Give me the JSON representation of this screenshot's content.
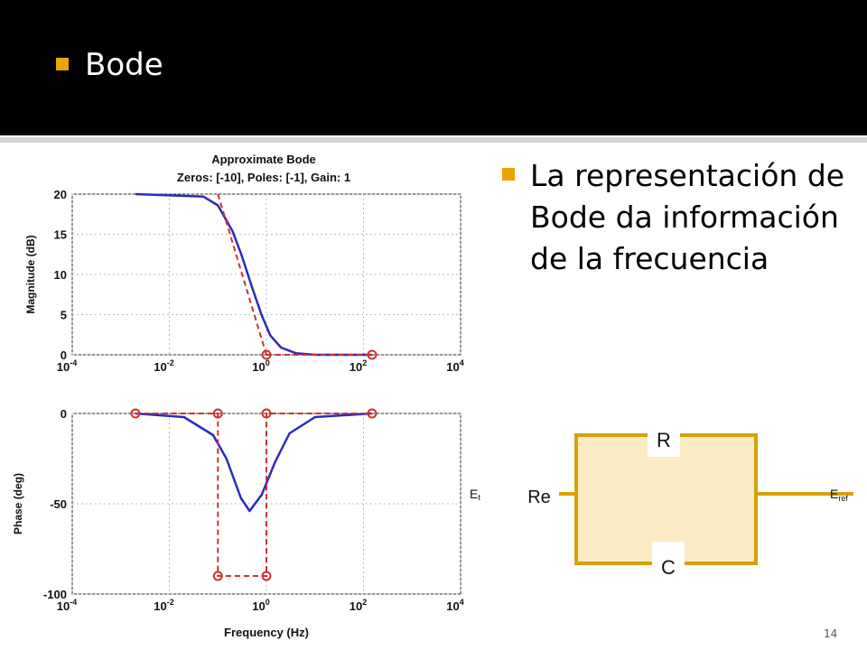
{
  "slide": {
    "title": "Bode",
    "bullet": "La representación de Bode da información de la frecuencia",
    "page_number": "14",
    "accent_color": "#e9a400"
  },
  "plot": {
    "title_line1": "Approximate Bode",
    "title_line2": "Zeros: [-10], Poles: [-1], Gain: 1",
    "xlabel": "Frequency (Hz)",
    "x_ticks": [
      "10",
      "10",
      "10",
      "10",
      "10"
    ],
    "x_tick_exponents": [
      "-4",
      "-2",
      "0",
      "2",
      "4"
    ],
    "magnitude": {
      "ylabel": "Magnitude (dB)",
      "y_ticks": [
        "0",
        "5",
        "10",
        "15",
        "20"
      ]
    },
    "phase": {
      "ylabel": "Phase (deg)",
      "y_ticks": [
        "-100",
        "-50",
        "0"
      ]
    }
  },
  "chart_data": [
    {
      "type": "line",
      "title": "Approximate Bode\nZeros: [-10], Poles: [-1], Gain: 1",
      "ylabel": "Magnitude (dB)",
      "xscale": "log",
      "xlim": [
        0.0001,
        10000
      ],
      "ylim": [
        0,
        20
      ],
      "grid": true,
      "series": [
        {
          "style": "solid-blue",
          "x": [
            0.002,
            0.05,
            0.1,
            0.2,
            0.3,
            0.5,
            0.8,
            1.2,
            2,
            4,
            10,
            150
          ],
          "y": [
            20,
            19.7,
            18.6,
            15.4,
            12.6,
            8.5,
            4.9,
            2.4,
            0.9,
            0.2,
            0,
            0
          ]
        },
        {
          "style": "dashed-red",
          "x": [
            0.1,
            1
          ],
          "y": [
            20,
            0
          ]
        },
        {
          "style": "dashed-red-markers",
          "x": [
            1,
            150
          ],
          "y": [
            0,
            0
          ]
        }
      ]
    },
    {
      "type": "line",
      "ylabel": "Phase (deg)",
      "xlabel": "Frequency (Hz)",
      "xscale": "log",
      "xlim": [
        0.0001,
        10000
      ],
      "ylim": [
        -100,
        0
      ],
      "grid": true,
      "series": [
        {
          "style": "solid-blue",
          "x": [
            0.002,
            0.02,
            0.08,
            0.15,
            0.3,
            0.45,
            0.8,
            1.5,
            3,
            10,
            150
          ],
          "y": [
            0,
            -2,
            -12,
            -25,
            -47,
            -54,
            -45,
            -27,
            -11,
            -2,
            0
          ]
        },
        {
          "style": "dashed-red-markers",
          "x": [
            0.002,
            0.1,
            0.1,
            1,
            1,
            150
          ],
          "y": [
            0,
            0,
            -90,
            -90,
            0,
            0
          ]
        }
      ]
    }
  ],
  "circuit": {
    "label_r": "R",
    "label_c": "C",
    "label_re": "Re",
    "label_et_main": "E",
    "label_et_sub": "t",
    "label_eref_main": "E",
    "label_eref_sub": "ref",
    "box_fill": "#fdebc4",
    "wire_color": "#d4a20a"
  }
}
